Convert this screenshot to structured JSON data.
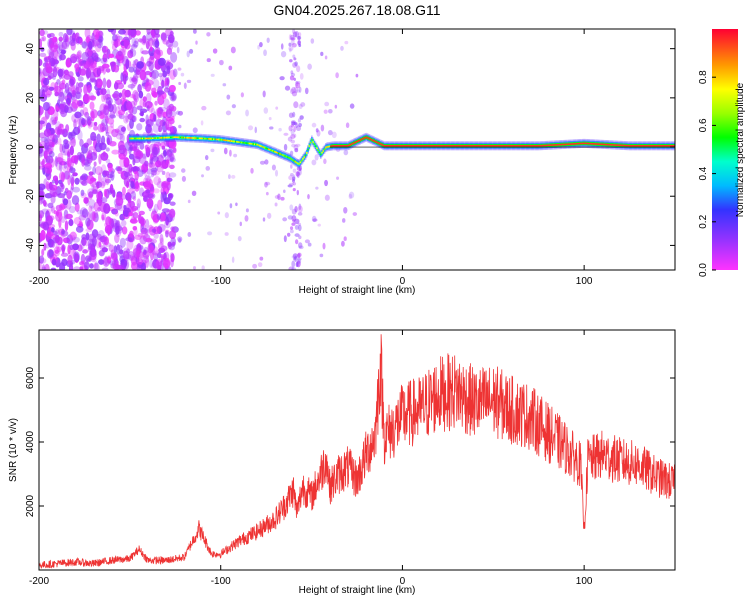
{
  "title": "GN04.2025.267.18.08.G11",
  "chart_data": [
    {
      "type": "heatmap",
      "xlabel": "Height of straight line (km)",
      "ylabel": "Frequency (Hz)",
      "xlim": [
        -200,
        150
      ],
      "ylim": [
        -50,
        48
      ],
      "xticks": [
        -200,
        -100,
        0,
        100
      ],
      "yticks": [
        -40,
        -20,
        0,
        20,
        40
      ],
      "colorbar": {
        "label": "Normalized spectral amplitude",
        "range": [
          0,
          1
        ],
        "ticks": [
          0.0,
          0.2,
          0.4,
          0.6,
          0.8
        ],
        "tick_labels": [
          "0.0",
          "0.2",
          "0.4",
          "0.6",
          "0.8"
        ]
      },
      "ridge": {
        "x": [
          -150,
          -140,
          -125,
          -110,
          -100,
          -90,
          -80,
          -70,
          -62,
          -57,
          -53,
          -50,
          -45,
          -42,
          -38,
          -30,
          -20,
          -10,
          0,
          25,
          50,
          75,
          100,
          125,
          150
        ],
        "y": [
          3.5,
          3.5,
          4,
          3.5,
          3,
          2,
          1,
          -2,
          -4.5,
          -7,
          -3,
          3,
          -3,
          0,
          0.5,
          0.5,
          4,
          0.5,
          0.5,
          0.5,
          0.5,
          0.5,
          1.5,
          0.5,
          0.5
        ]
      },
      "noise_region": {
        "x": [
          -200,
          -125
        ]
      }
    },
    {
      "type": "line",
      "xlabel": "Height of straight line (km)",
      "ylabel": "SNR (10 * v/v)",
      "xlim": [
        -200,
        150
      ],
      "ylim": [
        0,
        7500
      ],
      "xticks": [
        -200,
        -100,
        0,
        100
      ],
      "yticks": [
        2000,
        4000,
        6000
      ],
      "series": [
        {
          "color": "#ee3333",
          "x": [
            -200,
            -190,
            -180,
            -170,
            -160,
            -150,
            -145,
            -140,
            -130,
            -120,
            -112,
            -105,
            -100,
            -90,
            -80,
            -70,
            -65,
            -60,
            -58,
            -55,
            -50,
            -45,
            -42,
            -40,
            -35,
            -30,
            -25,
            -20,
            -15,
            -12,
            -10,
            -5,
            0,
            10,
            20,
            30,
            40,
            50,
            60,
            70,
            80,
            90,
            98,
            100,
            102,
            110,
            120,
            130,
            140,
            150
          ],
          "y": [
            150,
            200,
            250,
            200,
            300,
            350,
            650,
            300,
            300,
            400,
            1300,
            500,
            500,
            900,
            1200,
            1600,
            2000,
            2500,
            1800,
            2600,
            2300,
            3000,
            3500,
            2600,
            3000,
            3200,
            2800,
            3600,
            4200,
            6500,
            4200,
            4400,
            4800,
            5000,
            5500,
            5600,
            5200,
            5300,
            5000,
            4800,
            4300,
            3800,
            3300,
            1200,
            3400,
            3600,
            3400,
            3300,
            2900,
            2700
          ]
        }
      ]
    }
  ]
}
